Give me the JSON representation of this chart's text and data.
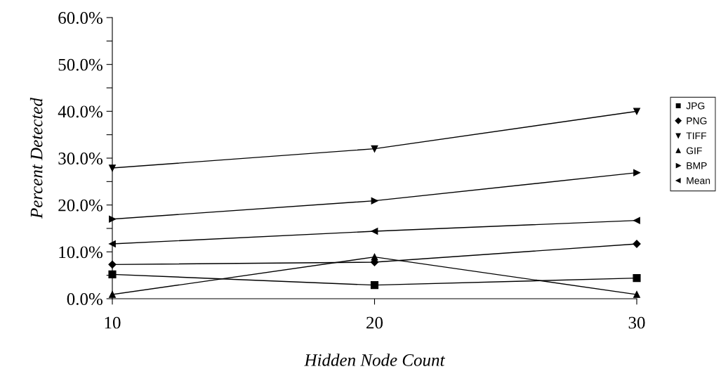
{
  "chart_data": {
    "type": "line",
    "xlabel": "Hidden Node Count",
    "ylabel": "Percent Detected",
    "x": [
      10,
      20,
      30
    ],
    "series": [
      {
        "name": "JPG",
        "color": "#000000",
        "marker": "square",
        "values": [
          5.2,
          2.9,
          4.4
        ]
      },
      {
        "name": "PNG",
        "color": "#000000",
        "marker": "diamond",
        "values": [
          7.3,
          7.8,
          11.7
        ]
      },
      {
        "name": "TIFF",
        "color": "#000000",
        "marker": "triangle_down",
        "values": [
          27.9,
          32.0,
          40.0
        ]
      },
      {
        "name": "GIF",
        "color": "#000000",
        "marker": "triangle",
        "values": [
          0.9,
          8.9,
          0.9
        ]
      },
      {
        "name": "BMP",
        "color": "#000000",
        "marker": "triangle_right",
        "values": [
          17.0,
          20.9,
          26.9
        ]
      },
      {
        "name": "Mean",
        "color": "#000000",
        "marker": "triangle_left",
        "values": [
          11.7,
          14.4,
          16.7
        ]
      }
    ],
    "xlim": [
      10,
      30
    ],
    "xticks": [
      10,
      20,
      30
    ],
    "ylim": [
      0,
      60
    ],
    "yticks": [
      {
        "value": 0,
        "label": "0.0%"
      },
      {
        "value": 5,
        "label": null
      },
      {
        "value": 10,
        "label": "10.0%"
      },
      {
        "value": 15,
        "label": null
      },
      {
        "value": 20,
        "label": "20.0%"
      },
      {
        "value": 25,
        "label": null
      },
      {
        "value": 30,
        "label": "30.0%"
      },
      {
        "value": 35,
        "label": null
      },
      {
        "value": 40,
        "label": "40.0%"
      },
      {
        "value": 45,
        "label": null
      },
      {
        "value": 50,
        "label": "50.0%"
      },
      {
        "value": 55,
        "label": null
      },
      {
        "value": 60,
        "label": "60.0%"
      }
    ],
    "grid": false,
    "legend": "right",
    "line_style": "solid"
  }
}
